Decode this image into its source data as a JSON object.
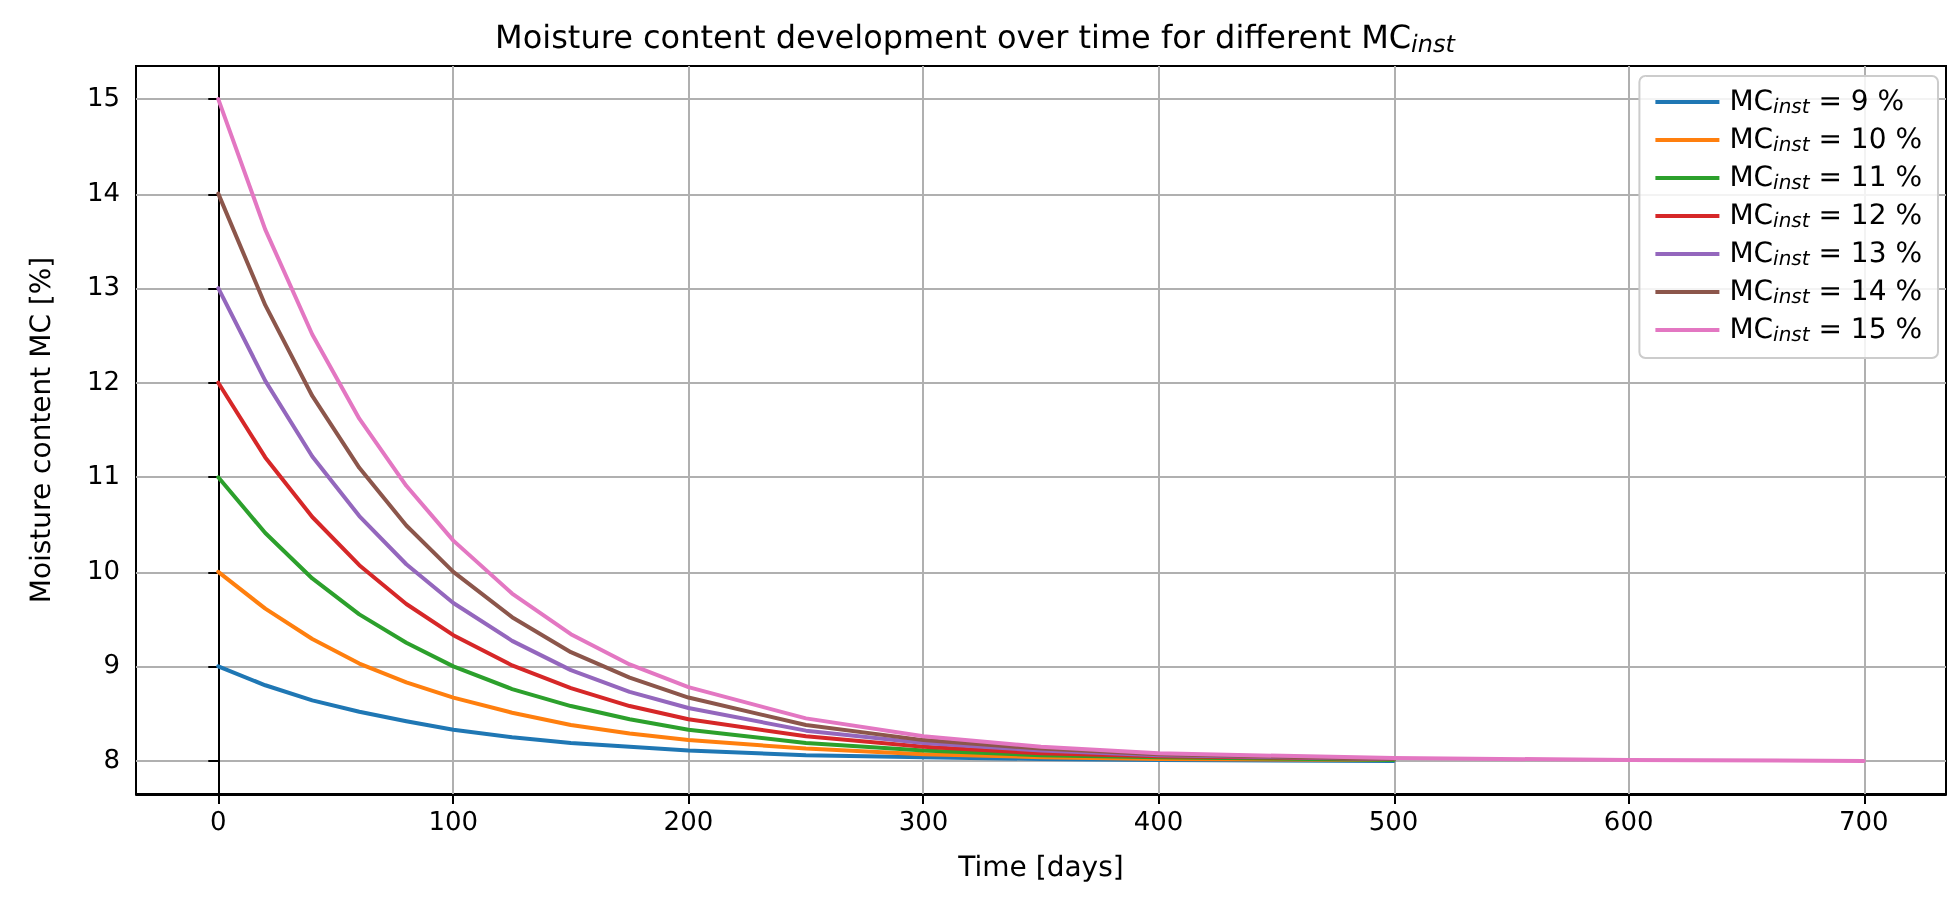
{
  "chart_data": {
    "type": "line",
    "title": "Moisture content development over time for different MC$_{inst}$",
    "xlabel": "Time [days]",
    "ylabel": "Moisture content MC [%]",
    "x": [
      0,
      20,
      40,
      60,
      80,
      100,
      125,
      150,
      175,
      200,
      250,
      300,
      350,
      400,
      500,
      600,
      700
    ],
    "series": [
      {
        "name": "MC$_{inst}$ = 9 %",
        "color": "#1f77b4",
        "values": [
          9,
          8.8,
          8.64,
          8.52,
          8.42,
          8.33,
          8.25,
          8.19,
          8.15,
          8.11,
          8.06,
          8.04,
          8.02,
          8.01,
          8,
          null,
          null
        ]
      },
      {
        "name": "MC$_{inst}$ = 10 %",
        "color": "#ff7f0e",
        "values": [
          10,
          9.61,
          9.29,
          9.03,
          8.83,
          8.67,
          8.51,
          8.38,
          8.29,
          8.22,
          8.13,
          8.07,
          8.04,
          8.02,
          8.01,
          null,
          null
        ]
      },
      {
        "name": "MC$_{inst}$ = 11 %",
        "color": "#2ca02c",
        "values": [
          11,
          10.41,
          9.93,
          9.55,
          9.25,
          9,
          8.76,
          8.58,
          8.44,
          8.33,
          8.19,
          8.11,
          8.06,
          8.04,
          8.01,
          null,
          null
        ]
      },
      {
        "name": "MC$_{inst}$ = 12 %",
        "color": "#d62728",
        "values": [
          12,
          11.21,
          10.58,
          10.07,
          9.66,
          9.33,
          9.01,
          8.77,
          8.58,
          8.44,
          8.26,
          8.15,
          8.08,
          8.05,
          8.02,
          null,
          null
        ]
      },
      {
        "name": "MC$_{inst}$ = 13 %",
        "color": "#9467bd",
        "values": [
          13,
          12.02,
          11.22,
          10.59,
          10.08,
          9.67,
          9.27,
          8.96,
          8.73,
          8.56,
          8.32,
          8.19,
          8.11,
          8.06,
          8.02,
          null,
          null
        ]
      },
      {
        "name": "MC$_{inst}$ = 14 %",
        "color": "#8c564b",
        "values": [
          14,
          12.82,
          11.86,
          11.1,
          10.49,
          10,
          9.52,
          9.15,
          8.88,
          8.67,
          8.38,
          8.22,
          8.13,
          8.07,
          8.02,
          null,
          null
        ]
      },
      {
        "name": "MC$_{inst}$ = 15 %",
        "color": "#e377c2",
        "values": [
          15,
          13.62,
          12.51,
          11.62,
          10.91,
          10.33,
          9.77,
          9.34,
          9.02,
          8.78,
          8.45,
          8.26,
          8.15,
          8.08,
          8.03,
          8.01,
          8
        ]
      }
    ],
    "xlim": [
      -35,
      735
    ],
    "ylim": [
      7.65,
      15.35
    ],
    "xticks": [
      0,
      100,
      200,
      300,
      400,
      500,
      600,
      700
    ],
    "yticks": [
      8,
      9,
      10,
      11,
      12,
      13,
      14,
      15
    ],
    "grid": true,
    "legend": "top right",
    "marker": "none",
    "line_style": "solid"
  }
}
